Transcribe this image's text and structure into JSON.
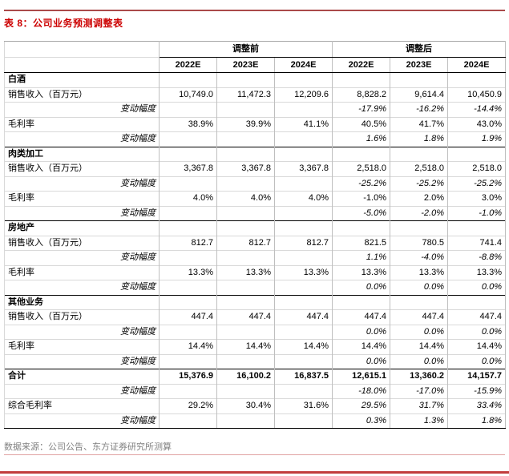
{
  "page": {
    "title": "表 8：公司业务预测调整表",
    "source": "数据来源：公司公告、东方证券研究所测算"
  },
  "colors": {
    "title_red": "#cc0000",
    "top_rule_red": "#aa4a4a",
    "source_gray": "#808080",
    "thin_rule_pink": "#e0a2a2",
    "bottom_bar_red": "#c23c3c",
    "grid_light": "#d9d9d9",
    "grid_mid": "#bfbfbf",
    "grid_dark": "#000000"
  },
  "table": {
    "group_headers": [
      {
        "label": "调整前",
        "span": 3
      },
      {
        "label": "调整后",
        "span": 3
      }
    ],
    "year_headers": [
      "2022E",
      "2023E",
      "2024E",
      "2022E",
      "2023E",
      "2024E"
    ],
    "rows": [
      {
        "type": "section",
        "label": "白酒",
        "values": [
          "",
          "",
          "",
          "",
          "",
          ""
        ]
      },
      {
        "type": "data",
        "label": "销售收入（百万元）",
        "values": [
          "10,749.0",
          "11,472.3",
          "12,209.6",
          "8,828.2",
          "9,614.4",
          "10,450.9"
        ]
      },
      {
        "type": "change",
        "label": "变动幅度",
        "values": [
          "",
          "",
          "",
          "-17.9%",
          "-16.2%",
          "-14.4%"
        ]
      },
      {
        "type": "data",
        "label": "毛利率",
        "values": [
          "38.9%",
          "39.9%",
          "41.1%",
          "40.5%",
          "41.7%",
          "43.0%"
        ]
      },
      {
        "type": "change",
        "label": "变动幅度",
        "values": [
          "",
          "",
          "",
          "1.6%",
          "1.8%",
          "1.9%"
        ]
      },
      {
        "type": "section",
        "label": "肉类加工",
        "values": [
          "",
          "",
          "",
          "",
          "",
          ""
        ]
      },
      {
        "type": "data",
        "label": "销售收入（百万元）",
        "values": [
          "3,367.8",
          "3,367.8",
          "3,367.8",
          "2,518.0",
          "2,518.0",
          "2,518.0"
        ]
      },
      {
        "type": "change",
        "label": "变动幅度",
        "values": [
          "",
          "",
          "",
          "-25.2%",
          "-25.2%",
          "-25.2%"
        ]
      },
      {
        "type": "data",
        "label": "毛利率",
        "values": [
          "4.0%",
          "4.0%",
          "4.0%",
          "-1.0%",
          "2.0%",
          "3.0%"
        ]
      },
      {
        "type": "change",
        "label": "变动幅度",
        "values": [
          "",
          "",
          "",
          "-5.0%",
          "-2.0%",
          "-1.0%"
        ]
      },
      {
        "type": "section",
        "label": "房地产",
        "values": [
          "",
          "",
          "",
          "",
          "",
          ""
        ]
      },
      {
        "type": "data",
        "label": "销售收入（百万元）",
        "values": [
          "812.7",
          "812.7",
          "812.7",
          "821.5",
          "780.5",
          "741.4"
        ]
      },
      {
        "type": "change",
        "label": "变动幅度",
        "values": [
          "",
          "",
          "",
          "1.1%",
          "-4.0%",
          "-8.8%"
        ]
      },
      {
        "type": "data",
        "label": "毛利率",
        "values": [
          "13.3%",
          "13.3%",
          "13.3%",
          "13.3%",
          "13.3%",
          "13.3%"
        ]
      },
      {
        "type": "change",
        "label": "变动幅度",
        "values": [
          "",
          "",
          "",
          "0.0%",
          "0.0%",
          "0.0%"
        ]
      },
      {
        "type": "section",
        "label": "其他业务",
        "values": [
          "",
          "",
          "",
          "",
          "",
          ""
        ]
      },
      {
        "type": "data",
        "label": "销售收入（百万元）",
        "values": [
          "447.4",
          "447.4",
          "447.4",
          "447.4",
          "447.4",
          "447.4"
        ]
      },
      {
        "type": "change",
        "label": "变动幅度",
        "values": [
          "",
          "",
          "",
          "0.0%",
          "0.0%",
          "0.0%"
        ]
      },
      {
        "type": "data",
        "label": "毛利率",
        "values": [
          "14.4%",
          "14.4%",
          "14.4%",
          "14.4%",
          "14.4%",
          "14.4%"
        ]
      },
      {
        "type": "change",
        "label": "变动幅度",
        "values": [
          "",
          "",
          "",
          "0.0%",
          "0.0%",
          "0.0%"
        ]
      },
      {
        "type": "total",
        "label": "合计",
        "values": [
          "15,376.9",
          "16,100.2",
          "16,837.5",
          "12,615.1",
          "13,360.2",
          "14,157.7"
        ]
      },
      {
        "type": "change",
        "label": "变动幅度",
        "values": [
          "",
          "",
          "",
          "-18.0%",
          "-17.0%",
          "-15.9%"
        ]
      },
      {
        "type": "data",
        "label": "综合毛利率",
        "adjusted_italic": true,
        "values": [
          "29.2%",
          "30.4%",
          "31.6%",
          "29.5%",
          "31.7%",
          "33.4%"
        ]
      },
      {
        "type": "change",
        "label": "变动幅度",
        "values": [
          "",
          "",
          "",
          "0.3%",
          "1.3%",
          "1.8%"
        ]
      }
    ]
  }
}
